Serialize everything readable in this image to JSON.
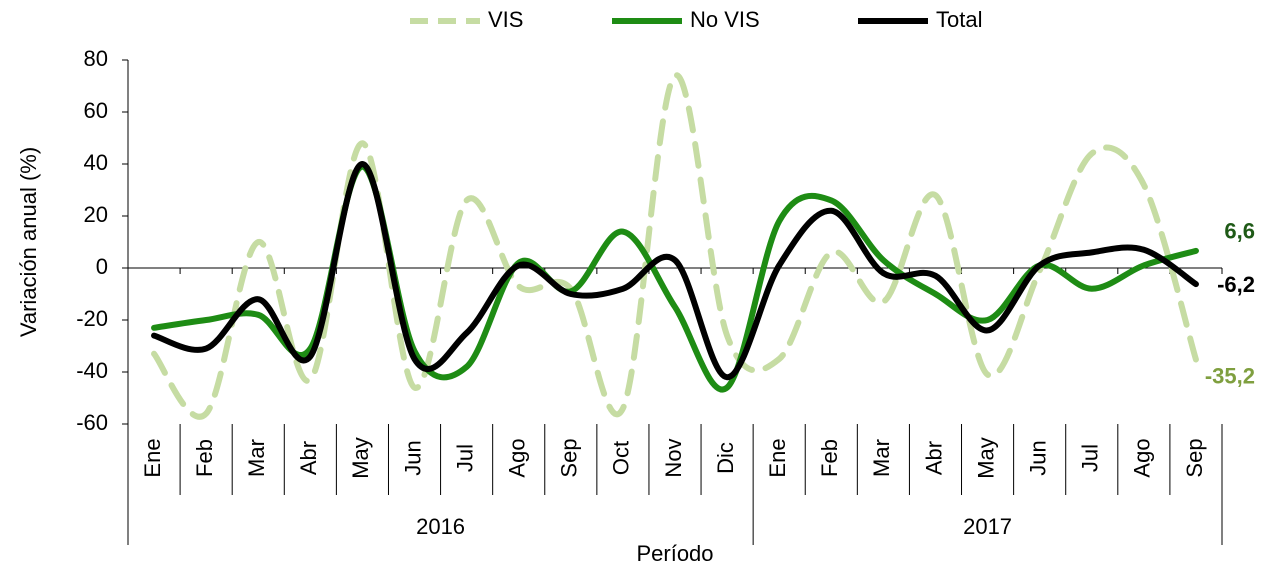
{
  "chart_data": {
    "type": "line",
    "y_label": "Variación anual (%)",
    "x_label": "Período",
    "categories": [
      "Ene",
      "Feb",
      "Mar",
      "Abr",
      "May",
      "Jun",
      "Jul",
      "Ago",
      "Sep",
      "Oct",
      "Nov",
      "Dic",
      "Ene",
      "Feb",
      "Mar",
      "Abr",
      "May",
      "Jun",
      "Jul",
      "Ago",
      "Sep"
    ],
    "year_groups": [
      {
        "label": "2016",
        "months": 12
      },
      {
        "label": "2017",
        "months": 9
      }
    ],
    "ylim": [
      -60,
      80
    ],
    "yticks": [
      -60,
      -40,
      -20,
      0,
      20,
      40,
      60,
      80
    ],
    "smooth": true,
    "legend": "top",
    "series": [
      {
        "name": "VIS",
        "color": "#c6dca3",
        "line_style": "dashed",
        "label_color": "#7f9f3f",
        "values": [
          -33,
          -56,
          10,
          -43,
          48,
          -46,
          26,
          -7,
          -8,
          -54,
          74,
          -26,
          -35,
          6,
          -13,
          28,
          -41,
          -1,
          44,
          32,
          -35.2
        ],
        "value_labels": [
          null,
          null,
          null,
          null,
          null,
          null,
          null,
          null,
          null,
          null,
          null,
          null,
          null,
          null,
          null,
          null,
          null,
          null,
          null,
          null,
          "-35,2"
        ]
      },
      {
        "name": "No VIS",
        "color": "#1e8c14",
        "line_style": "solid",
        "label_color": "#1f5a17",
        "values": [
          -23,
          -20,
          -18,
          -31,
          39,
          -32,
          -38,
          2,
          -9,
          14,
          -15,
          -46,
          18,
          26,
          3,
          -10,
          -20,
          1,
          -8,
          1,
          6.6
        ],
        "value_labels": [
          null,
          null,
          null,
          null,
          null,
          null,
          null,
          null,
          null,
          null,
          null,
          null,
          null,
          null,
          null,
          null,
          null,
          null,
          null,
          null,
          "6,6"
        ]
      },
      {
        "name": "Total",
        "color": "#000000",
        "line_style": "solid",
        "label_color": "#000000",
        "values": [
          -26,
          -31,
          -12,
          -34,
          40,
          -35,
          -25,
          1,
          -10,
          -8,
          3,
          -42,
          1,
          22,
          -2,
          -3,
          -24,
          1,
          6,
          7,
          -6.2
        ],
        "value_labels": [
          null,
          null,
          null,
          null,
          null,
          null,
          null,
          null,
          null,
          null,
          null,
          null,
          null,
          null,
          null,
          null,
          null,
          null,
          null,
          null,
          "-6,2"
        ]
      }
    ]
  }
}
